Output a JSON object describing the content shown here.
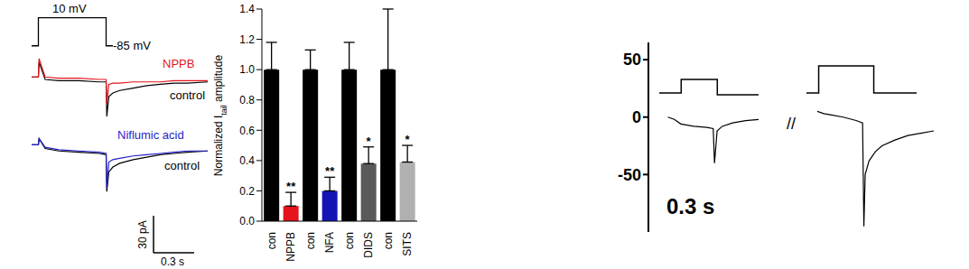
{
  "chart_data": [
    {
      "type": "line",
      "x": [
        -0.05,
        0,
        0,
        0.5,
        0.5,
        0.55
      ],
      "values": [
        -85,
        -85,
        10,
        10,
        -85,
        -85
      ],
      "color": "#000000",
      "xlim": [
        -0.05,
        1.25
      ],
      "ylim": [
        -95,
        15
      ],
      "tick_labels": false,
      "step_label": "10 mV",
      "holding_label": "-85 mV"
    },
    {
      "type": "line",
      "x": [
        -0.05,
        0,
        0.005,
        0.05,
        0.15,
        0.3,
        0.45,
        0.5,
        0.505,
        0.52,
        0.55,
        0.6,
        0.7,
        0.8,
        0.9,
        1.0,
        1.1,
        1.25
      ],
      "xlim": [
        -0.05,
        1.25
      ],
      "ylim": [
        -35,
        20
      ],
      "tick_labels": false,
      "series": [
        {
          "name": "control",
          "color": "#000000",
          "values": [
            0,
            0,
            12,
            -2,
            -3,
            -3,
            -4,
            -4,
            -32,
            -16,
            -13,
            -11,
            -9,
            -7,
            -6,
            -5,
            -5,
            -4
          ]
        },
        {
          "name": "NPPB",
          "color": "#e3141b",
          "values": [
            0,
            0,
            15,
            0,
            -1,
            -1,
            -2,
            -2,
            -22,
            -6,
            -5,
            -5,
            -4,
            -4,
            -4,
            -3,
            -3,
            -3
          ]
        }
      ]
    },
    {
      "type": "line",
      "x": [
        -0.05,
        0,
        0.005,
        0.05,
        0.15,
        0.3,
        0.45,
        0.5,
        0.505,
        0.52,
        0.55,
        0.6,
        0.7,
        0.8,
        0.9,
        1.0,
        1.1,
        1.25
      ],
      "xlim": [
        -0.05,
        1.25
      ],
      "ylim": [
        -40,
        15
      ],
      "tick_labels": false,
      "series": [
        {
          "name": "control",
          "color": "#000000",
          "values": [
            0,
            0,
            5,
            -3,
            -5,
            -6,
            -7,
            -8,
            -38,
            -22,
            -18,
            -15,
            -12,
            -10,
            -8,
            -7,
            -6,
            -5
          ]
        },
        {
          "name": "Niflumic acid",
          "color": "#1f1fc8",
          "values": [
            0,
            0,
            5,
            -2,
            -4,
            -5,
            -6,
            -7,
            -35,
            -14,
            -12,
            -11,
            -9,
            -8,
            -7,
            -6,
            -5,
            -5
          ]
        }
      ],
      "scale_bar": {
        "x": 0.3,
        "x_label": "0.3 s",
        "y": 30,
        "y_label": "30 pA"
      }
    },
    {
      "type": "bar",
      "categories": [
        "con",
        "NPPB",
        "con",
        "NFA",
        "con",
        "DIDS",
        "con",
        "SITS"
      ],
      "values": [
        1,
        0.1,
        1,
        0.2,
        1,
        0.38,
        1,
        0.39
      ],
      "errors": [
        0.18,
        0.09,
        0.13,
        0.09,
        0.18,
        0.11,
        0.4,
        0.11
      ],
      "significance": [
        null,
        "**",
        null,
        "**",
        null,
        "*",
        null,
        "*"
      ],
      "colors": [
        "#000000",
        "#e3141b",
        "#000000",
        "#1414b4",
        "#000000",
        "#5a5a5a",
        "#000000",
        "#b0b0b0"
      ],
      "ylim": [
        0,
        1.4
      ],
      "yticks": [
        {
          "value": 0,
          "label": "0.0"
        },
        {
          "value": 0.2,
          "label": "0.2"
        },
        {
          "value": 0.4,
          "label": "0.4"
        },
        {
          "value": 0.6,
          "label": "0.6"
        },
        {
          "value": 0.8,
          "label": "0.8"
        },
        {
          "value": 1,
          "label": "1.0"
        },
        {
          "value": 1.2,
          "label": "1.2"
        },
        {
          "value": 1.4,
          "label": "1.4"
        }
      ],
      "y_label": [
        "Normalized I",
        "tail",
        " amplitude"
      ]
    },
    {
      "type": "line",
      "ylim": [
        -100,
        65
      ],
      "yticks": [
        -50,
        0,
        50
      ],
      "time_label": "0.3 s",
      "break_label": "//",
      "series": [
        {
          "color": "#000000",
          "xlim": [
            -0.15,
            0.7
          ],
          "x": [
            0,
            0.05,
            0.1,
            0.2,
            0.3,
            0.35,
            0.36,
            0.38,
            0.42,
            0.5,
            0.6,
            0.7
          ],
          "values": [
            0,
            -2,
            -6,
            -8,
            -9,
            -10,
            -40,
            -12,
            -8,
            -5,
            -3,
            -2
          ]
        },
        {
          "color": "#000000",
          "xlim": [
            0,
            0.9
          ],
          "x": [
            0,
            0.05,
            0.1,
            0.2,
            0.3,
            0.35,
            0.36,
            0.37,
            0.4,
            0.45,
            0.5,
            0.6,
            0.7,
            0.8,
            0.9
          ],
          "values": [
            5,
            3,
            2,
            0,
            -3,
            -5,
            -95,
            -50,
            -38,
            -30,
            -25,
            -20,
            -16,
            -14,
            -12
          ]
        }
      ],
      "protocol": [
        {
          "x": [
            0,
            0.17,
            0.17,
            0.45,
            0.45,
            0.77
          ],
          "values": [
            0,
            0,
            15,
            15,
            -2,
            -2
          ],
          "ylim": [
            -5,
            35
          ]
        },
        {
          "x": [
            0,
            0.1,
            0.1,
            0.55,
            0.55,
            0.9
          ],
          "values": [
            0,
            0,
            30,
            30,
            0,
            0
          ],
          "ylim": [
            -5,
            35
          ]
        }
      ]
    }
  ]
}
